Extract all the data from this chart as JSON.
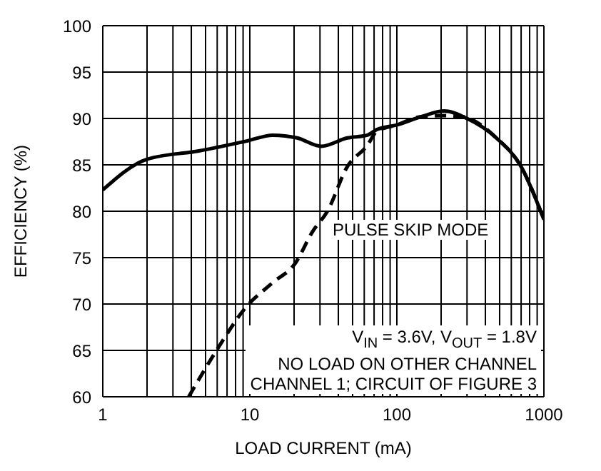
{
  "chart_data": {
    "type": "line",
    "xlabel": "LOAD CURRENT (mA)",
    "ylabel": "EFFICIENCY (%)",
    "log": "x",
    "grid": true,
    "legend": false,
    "marker": "none",
    "xlim": [
      1,
      1000
    ],
    "xticks": [
      1,
      {
        "value": 2,
        "label": null
      },
      {
        "value": 3,
        "label": null
      },
      {
        "value": 4,
        "label": null
      },
      {
        "value": 5,
        "label": null
      },
      {
        "value": 6,
        "label": null
      },
      {
        "value": 7,
        "label": null
      },
      {
        "value": 8,
        "label": null
      },
      {
        "value": 9,
        "label": null
      },
      10,
      {
        "value": 20,
        "label": null
      },
      {
        "value": 30,
        "label": null
      },
      {
        "value": 40,
        "label": null
      },
      {
        "value": 50,
        "label": null
      },
      {
        "value": 60,
        "label": null
      },
      {
        "value": 70,
        "label": null
      },
      {
        "value": 80,
        "label": null
      },
      {
        "value": 90,
        "label": null
      },
      100,
      {
        "value": 200,
        "label": null
      },
      {
        "value": 300,
        "label": null
      },
      {
        "value": 400,
        "label": null
      },
      {
        "value": 500,
        "label": null
      },
      {
        "value": 600,
        "label": null
      },
      {
        "value": 700,
        "label": null
      },
      {
        "value": 800,
        "label": null
      },
      {
        "value": 900,
        "label": null
      },
      1000
    ],
    "ylim": [
      60,
      100
    ],
    "yticks": [
      60,
      65,
      70,
      75,
      80,
      85,
      90,
      95,
      100
    ],
    "series": [
      {
        "color": "#000000",
        "line_style": "solid",
        "x": [
          1,
          2,
          4.5,
          9.7,
          14.3,
          21,
          30.6,
          46,
          63,
          73,
          100,
          147,
          210,
          300,
          475,
          700,
          1000
        ],
        "values": [
          82.3,
          85.6,
          86.5,
          87.6,
          88.2,
          87.9,
          87.0,
          87.9,
          88.2,
          88.8,
          89.3,
          90.2,
          90.8,
          90.0,
          87.9,
          84.8,
          79.1
        ]
      },
      {
        "name": "PULSE SKIP MODE",
        "color": "#000000",
        "line_style": "dashed",
        "x": [
          3.84,
          6.1,
          9.35,
          14.3,
          20.4,
          26.7,
          33.7,
          46,
          63,
          73,
          100,
          147,
          210,
          280,
          330,
          475,
          700,
          1000
        ],
        "values": [
          60,
          65.3,
          69.6,
          72.3,
          74.4,
          77.8,
          80,
          84.8,
          87.1,
          88.6,
          89.3,
          90.2,
          90.3,
          90.2,
          89.8,
          87.9,
          84.8,
          79.1
        ]
      }
    ],
    "annotations": [
      "V$_{IN}$ = 3.6V, V$_{OUT}$ = 1.8V",
      "NO LOAD ON OTHER CHANNEL",
      "CHANNEL 1; CIRCUIT OF FIGURE 3"
    ]
  }
}
